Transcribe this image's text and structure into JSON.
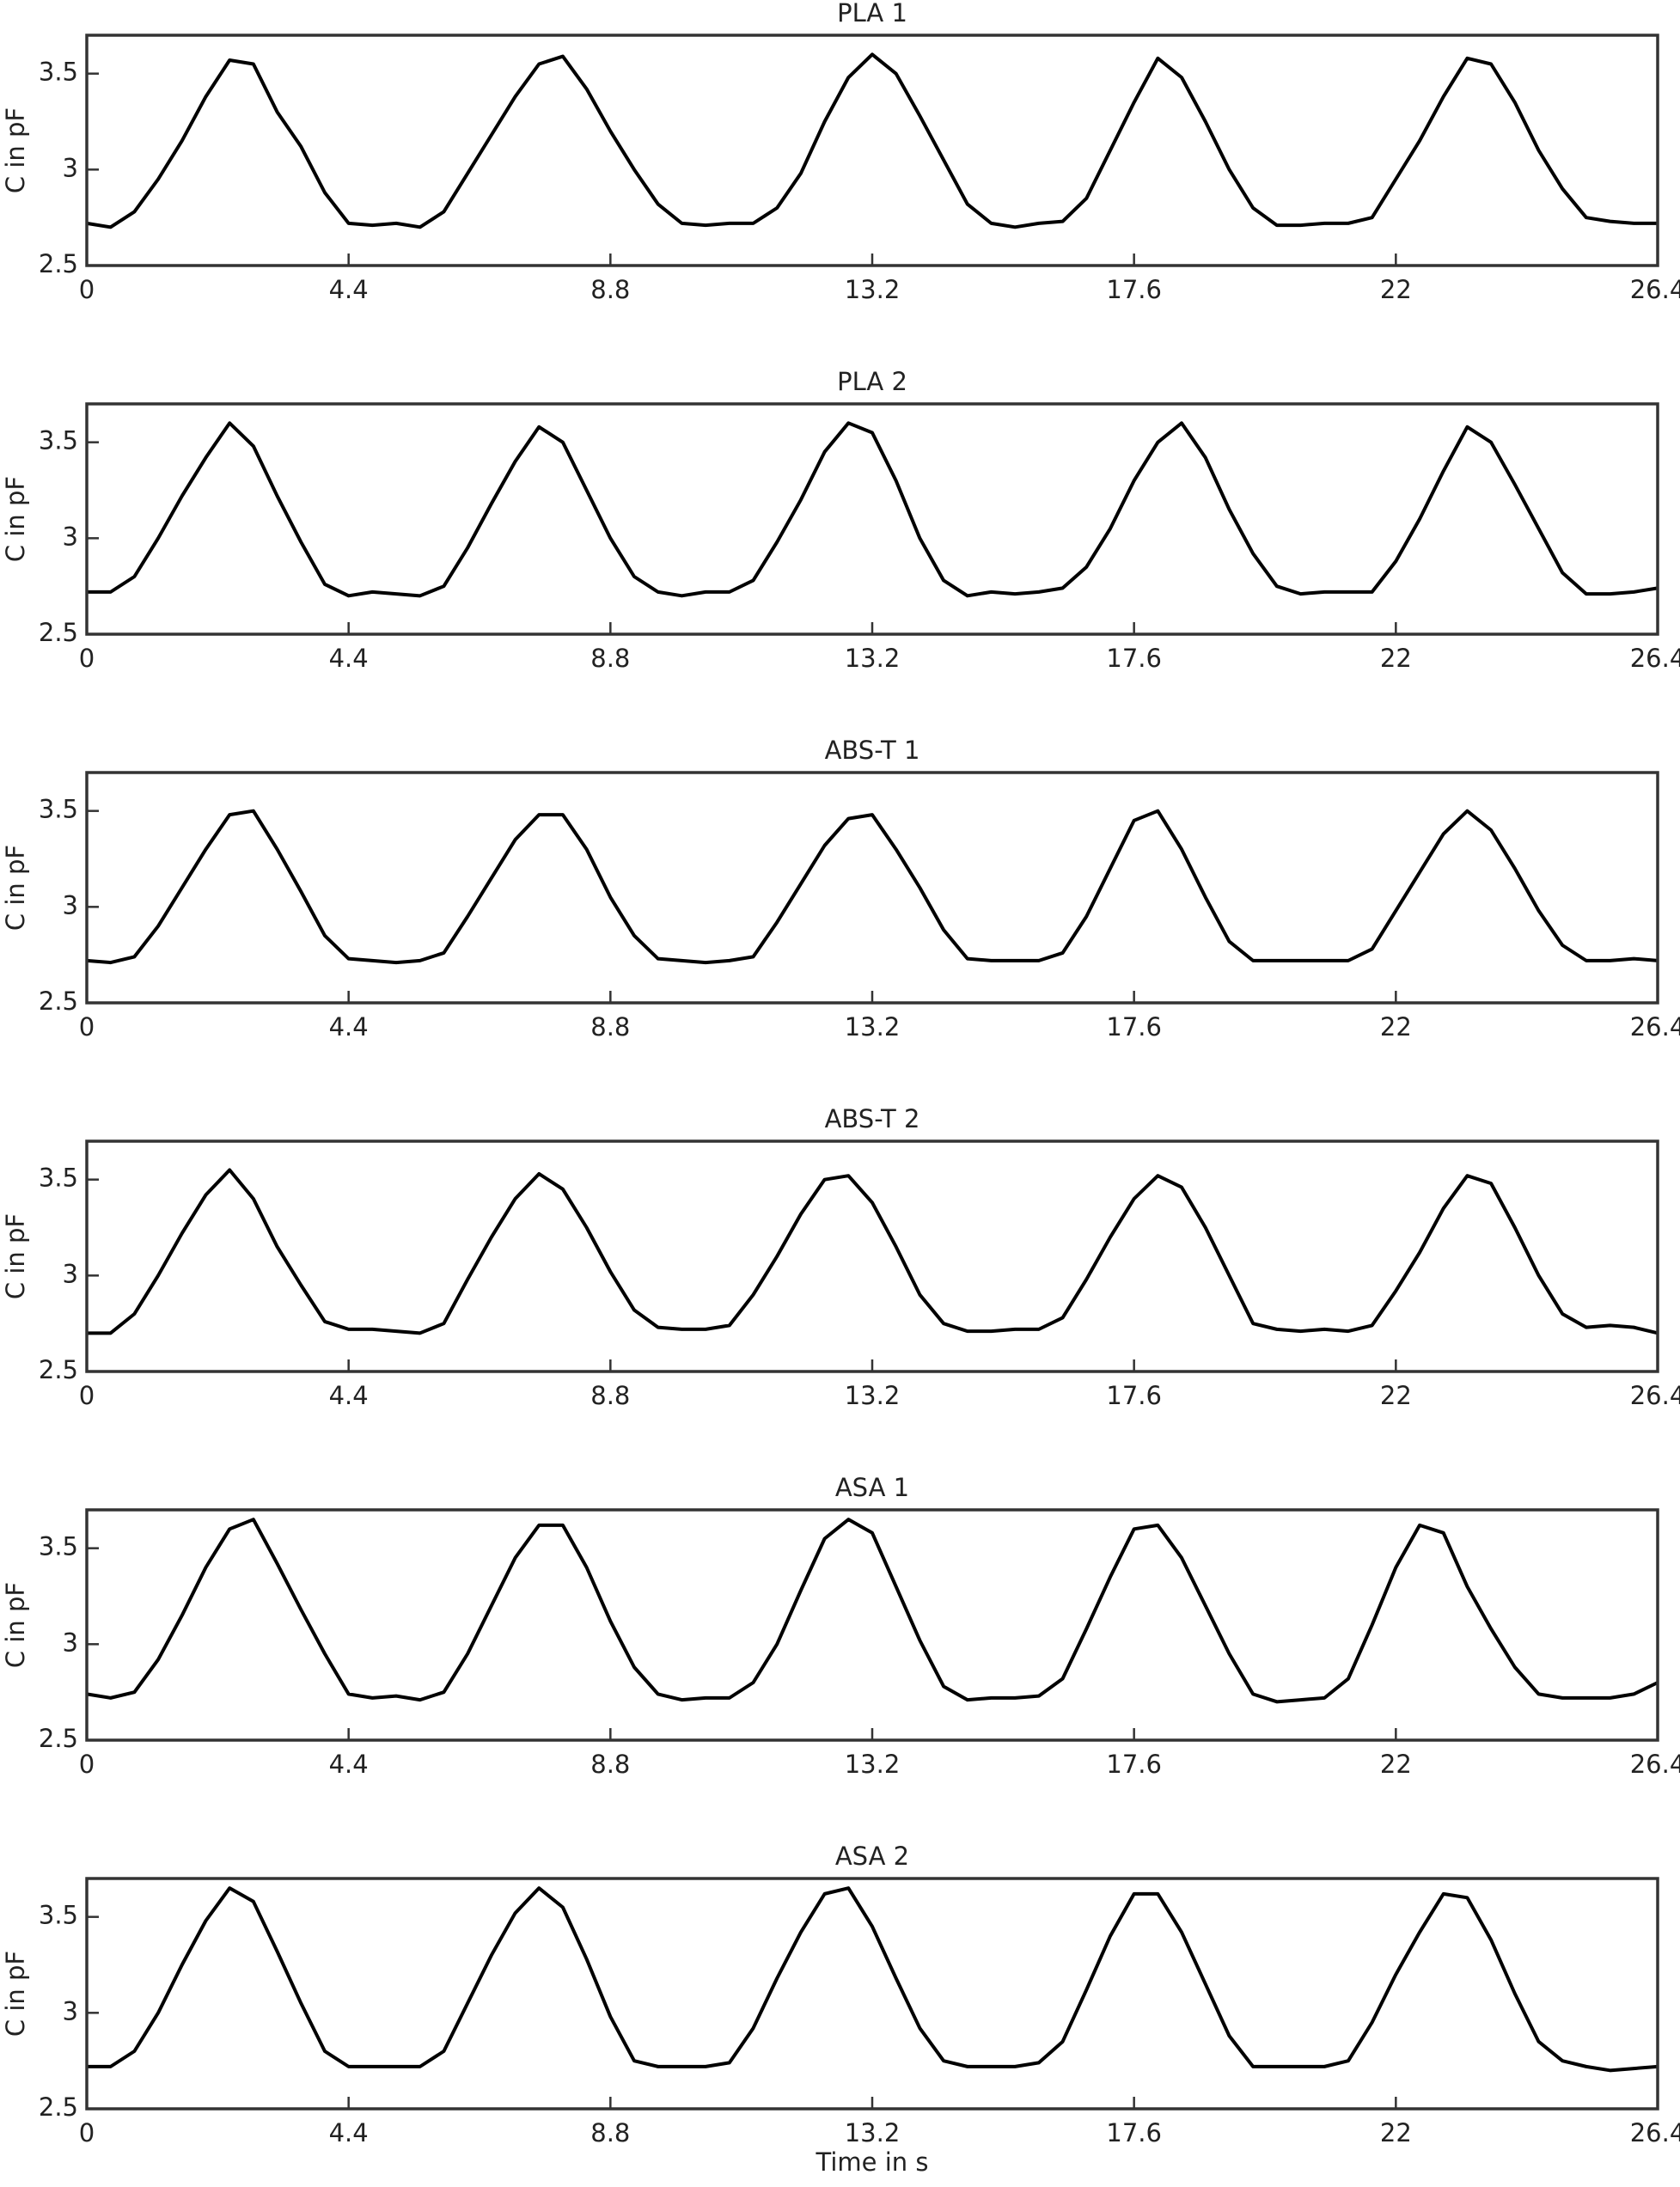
{
  "chart_data": [
    {
      "type": "line",
      "title": "PLA 1",
      "ylabel": "C in pF",
      "color": "#000000",
      "x": [
        0,
        0.4,
        0.8,
        1.2,
        1.6,
        2.0,
        2.4,
        2.8,
        3.2,
        3.6,
        4.0,
        4.4,
        4.8,
        5.2,
        5.6,
        6.0,
        6.4,
        6.8,
        7.2,
        7.6,
        8.0,
        8.4,
        8.8,
        9.2,
        9.6,
        10.0,
        10.4,
        10.8,
        11.2,
        11.6,
        12.0,
        12.4,
        12.8,
        13.2,
        13.6,
        14.0,
        14.4,
        14.8,
        15.2,
        15.6,
        16.0,
        16.4,
        16.8,
        17.2,
        17.6,
        18.0,
        18.4,
        18.8,
        19.2,
        19.6,
        20.0,
        20.4,
        20.8,
        21.2,
        21.6,
        22.0,
        22.4,
        22.8,
        23.2,
        23.6,
        24.0,
        24.4,
        24.8,
        25.2,
        25.6,
        26.0,
        26.4
      ],
      "values": [
        2.72,
        2.7,
        2.78,
        2.95,
        3.15,
        3.38,
        3.57,
        3.55,
        3.3,
        3.12,
        2.88,
        2.72,
        2.71,
        2.72,
        2.7,
        2.78,
        2.98,
        3.18,
        3.38,
        3.55,
        3.59,
        3.42,
        3.2,
        3.0,
        2.82,
        2.72,
        2.71,
        2.72,
        2.72,
        2.8,
        2.98,
        3.25,
        3.48,
        3.6,
        3.5,
        3.28,
        3.05,
        2.82,
        2.72,
        2.7,
        2.72,
        2.73,
        2.85,
        3.1,
        3.35,
        3.58,
        3.48,
        3.25,
        3.0,
        2.8,
        2.71,
        2.71,
        2.72,
        2.72,
        2.75,
        2.95,
        3.15,
        3.38,
        3.58,
        3.55,
        3.35,
        3.1,
        2.9,
        2.75,
        2.73,
        2.72,
        2.72
      ],
      "xlim": [
        0,
        26.4
      ],
      "ylim": [
        2.5,
        3.7
      ],
      "xticks": [
        0,
        4.4,
        8.8,
        13.2,
        17.6,
        22,
        26.4
      ],
      "yticks": [
        2.5,
        3,
        3.5
      ]
    },
    {
      "type": "line",
      "title": "PLA 2",
      "ylabel": "C in pF",
      "color": "#000000",
      "x": [
        0,
        0.4,
        0.8,
        1.2,
        1.6,
        2.0,
        2.4,
        2.8,
        3.2,
        3.6,
        4.0,
        4.4,
        4.8,
        5.2,
        5.6,
        6.0,
        6.4,
        6.8,
        7.2,
        7.6,
        8.0,
        8.4,
        8.8,
        9.2,
        9.6,
        10.0,
        10.4,
        10.8,
        11.2,
        11.6,
        12.0,
        12.4,
        12.8,
        13.2,
        13.6,
        14.0,
        14.4,
        14.8,
        15.2,
        15.6,
        16.0,
        16.4,
        16.8,
        17.2,
        17.6,
        18.0,
        18.4,
        18.8,
        19.2,
        19.6,
        20.0,
        20.4,
        20.8,
        21.2,
        21.6,
        22.0,
        22.4,
        22.8,
        23.2,
        23.6,
        24.0,
        24.4,
        24.8,
        25.2,
        25.6,
        26.0,
        26.4
      ],
      "values": [
        2.72,
        2.72,
        2.8,
        3.0,
        3.22,
        3.42,
        3.6,
        3.48,
        3.22,
        2.98,
        2.76,
        2.7,
        2.72,
        2.71,
        2.7,
        2.75,
        2.95,
        3.18,
        3.4,
        3.58,
        3.5,
        3.25,
        3.0,
        2.8,
        2.72,
        2.7,
        2.72,
        2.72,
        2.78,
        2.98,
        3.2,
        3.45,
        3.6,
        3.55,
        3.3,
        3.0,
        2.78,
        2.7,
        2.72,
        2.71,
        2.72,
        2.74,
        2.85,
        3.05,
        3.3,
        3.5,
        3.6,
        3.42,
        3.15,
        2.92,
        2.75,
        2.71,
        2.72,
        2.72,
        2.72,
        2.88,
        3.1,
        3.35,
        3.58,
        3.5,
        3.28,
        3.05,
        2.82,
        2.71,
        2.71,
        2.72,
        2.74
      ],
      "xlim": [
        0,
        26.4
      ],
      "ylim": [
        2.5,
        3.7
      ],
      "xticks": [
        0,
        4.4,
        8.8,
        13.2,
        17.6,
        22,
        26.4
      ],
      "yticks": [
        2.5,
        3,
        3.5
      ]
    },
    {
      "type": "line",
      "title": "ABS-T 1",
      "ylabel": "C in pF",
      "color": "#000000",
      "x": [
        0,
        0.4,
        0.8,
        1.2,
        1.6,
        2.0,
        2.4,
        2.8,
        3.2,
        3.6,
        4.0,
        4.4,
        4.8,
        5.2,
        5.6,
        6.0,
        6.4,
        6.8,
        7.2,
        7.6,
        8.0,
        8.4,
        8.8,
        9.2,
        9.6,
        10.0,
        10.4,
        10.8,
        11.2,
        11.6,
        12.0,
        12.4,
        12.8,
        13.2,
        13.6,
        14.0,
        14.4,
        14.8,
        15.2,
        15.6,
        16.0,
        16.4,
        16.8,
        17.2,
        17.6,
        18.0,
        18.4,
        18.8,
        19.2,
        19.6,
        20.0,
        20.4,
        20.8,
        21.2,
        21.6,
        22.0,
        22.4,
        22.8,
        23.2,
        23.6,
        24.0,
        24.4,
        24.8,
        25.2,
        25.6,
        26.0,
        26.4
      ],
      "values": [
        2.72,
        2.71,
        2.74,
        2.9,
        3.1,
        3.3,
        3.48,
        3.5,
        3.3,
        3.08,
        2.85,
        2.73,
        2.72,
        2.71,
        2.72,
        2.76,
        2.95,
        3.15,
        3.35,
        3.48,
        3.48,
        3.3,
        3.05,
        2.85,
        2.73,
        2.72,
        2.71,
        2.72,
        2.74,
        2.92,
        3.12,
        3.32,
        3.46,
        3.48,
        3.3,
        3.1,
        2.88,
        2.73,
        2.72,
        2.72,
        2.72,
        2.76,
        2.95,
        3.2,
        3.45,
        3.5,
        3.3,
        3.05,
        2.82,
        2.72,
        2.72,
        2.72,
        2.72,
        2.72,
        2.78,
        2.98,
        3.18,
        3.38,
        3.5,
        3.4,
        3.2,
        2.98,
        2.8,
        2.72,
        2.72,
        2.73,
        2.72
      ],
      "xlim": [
        0,
        26.4
      ],
      "ylim": [
        2.5,
        3.7
      ],
      "xticks": [
        0,
        4.4,
        8.8,
        13.2,
        17.6,
        22,
        26.4
      ],
      "yticks": [
        2.5,
        3,
        3.5
      ]
    },
    {
      "type": "line",
      "title": "ABS-T 2",
      "ylabel": "C in pF",
      "color": "#000000",
      "x": [
        0,
        0.4,
        0.8,
        1.2,
        1.6,
        2.0,
        2.4,
        2.8,
        3.2,
        3.6,
        4.0,
        4.4,
        4.8,
        5.2,
        5.6,
        6.0,
        6.4,
        6.8,
        7.2,
        7.6,
        8.0,
        8.4,
        8.8,
        9.2,
        9.6,
        10.0,
        10.4,
        10.8,
        11.2,
        11.6,
        12.0,
        12.4,
        12.8,
        13.2,
        13.6,
        14.0,
        14.4,
        14.8,
        15.2,
        15.6,
        16.0,
        16.4,
        16.8,
        17.2,
        17.6,
        18.0,
        18.4,
        18.8,
        19.2,
        19.6,
        20.0,
        20.4,
        20.8,
        21.2,
        21.6,
        22.0,
        22.4,
        22.8,
        23.2,
        23.6,
        24.0,
        24.4,
        24.8,
        25.2,
        25.6,
        26.0,
        26.4
      ],
      "values": [
        2.7,
        2.7,
        2.8,
        3.0,
        3.22,
        3.42,
        3.55,
        3.4,
        3.15,
        2.95,
        2.76,
        2.72,
        2.72,
        2.71,
        2.7,
        2.75,
        2.98,
        3.2,
        3.4,
        3.53,
        3.45,
        3.25,
        3.02,
        2.82,
        2.73,
        2.72,
        2.72,
        2.74,
        2.9,
        3.1,
        3.32,
        3.5,
        3.52,
        3.38,
        3.15,
        2.9,
        2.75,
        2.71,
        2.71,
        2.72,
        2.72,
        2.78,
        2.98,
        3.2,
        3.4,
        3.52,
        3.46,
        3.25,
        3.0,
        2.75,
        2.72,
        2.71,
        2.72,
        2.71,
        2.74,
        2.92,
        3.12,
        3.35,
        3.52,
        3.48,
        3.25,
        3.0,
        2.8,
        2.73,
        2.74,
        2.73,
        2.7
      ],
      "xlim": [
        0,
        26.4
      ],
      "ylim": [
        2.5,
        3.7
      ],
      "xticks": [
        0,
        4.4,
        8.8,
        13.2,
        17.6,
        22,
        26.4
      ],
      "yticks": [
        2.5,
        3,
        3.5
      ]
    },
    {
      "type": "line",
      "title": "ASA 1",
      "ylabel": "C in pF",
      "color": "#000000",
      "x": [
        0,
        0.4,
        0.8,
        1.2,
        1.6,
        2.0,
        2.4,
        2.8,
        3.2,
        3.6,
        4.0,
        4.4,
        4.8,
        5.2,
        5.6,
        6.0,
        6.4,
        6.8,
        7.2,
        7.6,
        8.0,
        8.4,
        8.8,
        9.2,
        9.6,
        10.0,
        10.4,
        10.8,
        11.2,
        11.6,
        12.0,
        12.4,
        12.8,
        13.2,
        13.6,
        14.0,
        14.4,
        14.8,
        15.2,
        15.6,
        16.0,
        16.4,
        16.8,
        17.2,
        17.6,
        18.0,
        18.4,
        18.8,
        19.2,
        19.6,
        20.0,
        20.4,
        20.8,
        21.2,
        21.6,
        22.0,
        22.4,
        22.8,
        23.2,
        23.6,
        24.0,
        24.4,
        24.8,
        25.2,
        25.6,
        26.0,
        26.4
      ],
      "values": [
        2.74,
        2.72,
        2.75,
        2.92,
        3.15,
        3.4,
        3.6,
        3.65,
        3.42,
        3.18,
        2.95,
        2.74,
        2.72,
        2.73,
        2.71,
        2.75,
        2.95,
        3.2,
        3.45,
        3.62,
        3.62,
        3.4,
        3.12,
        2.88,
        2.74,
        2.71,
        2.72,
        2.72,
        2.8,
        3.0,
        3.28,
        3.55,
        3.65,
        3.58,
        3.3,
        3.02,
        2.78,
        2.71,
        2.72,
        2.72,
        2.73,
        2.82,
        3.08,
        3.35,
        3.6,
        3.62,
        3.45,
        3.2,
        2.95,
        2.74,
        2.7,
        2.71,
        2.72,
        2.82,
        3.1,
        3.4,
        3.62,
        3.58,
        3.3,
        3.08,
        2.88,
        2.74,
        2.72,
        2.72,
        2.72,
        2.74,
        2.8
      ],
      "xlim": [
        0,
        26.4
      ],
      "ylim": [
        2.5,
        3.7
      ],
      "xticks": [
        0,
        4.4,
        8.8,
        13.2,
        17.6,
        22,
        26.4
      ],
      "yticks": [
        2.5,
        3,
        3.5
      ]
    },
    {
      "type": "line",
      "title": "ASA 2",
      "ylabel": "C in pF",
      "xlabel": "Time in s",
      "color": "#000000",
      "x": [
        0,
        0.4,
        0.8,
        1.2,
        1.6,
        2.0,
        2.4,
        2.8,
        3.2,
        3.6,
        4.0,
        4.4,
        4.8,
        5.2,
        5.6,
        6.0,
        6.4,
        6.8,
        7.2,
        7.6,
        8.0,
        8.4,
        8.8,
        9.2,
        9.6,
        10.0,
        10.4,
        10.8,
        11.2,
        11.6,
        12.0,
        12.4,
        12.8,
        13.2,
        13.6,
        14.0,
        14.4,
        14.8,
        15.2,
        15.6,
        16.0,
        16.4,
        16.8,
        17.2,
        17.6,
        18.0,
        18.4,
        18.8,
        19.2,
        19.6,
        20.0,
        20.4,
        20.8,
        21.2,
        21.6,
        22.0,
        22.4,
        22.8,
        23.2,
        23.6,
        24.0,
        24.4,
        24.8,
        25.2,
        25.6,
        26.0,
        26.4
      ],
      "values": [
        2.72,
        2.72,
        2.8,
        3.0,
        3.25,
        3.48,
        3.65,
        3.58,
        3.32,
        3.05,
        2.8,
        2.72,
        2.72,
        2.72,
        2.72,
        2.8,
        3.05,
        3.3,
        3.52,
        3.65,
        3.55,
        3.28,
        2.98,
        2.75,
        2.72,
        2.72,
        2.72,
        2.74,
        2.92,
        3.18,
        3.42,
        3.62,
        3.65,
        3.45,
        3.18,
        2.92,
        2.75,
        2.72,
        2.72,
        2.72,
        2.74,
        2.85,
        3.12,
        3.4,
        3.62,
        3.62,
        3.42,
        3.15,
        2.88,
        2.72,
        2.72,
        2.72,
        2.72,
        2.75,
        2.95,
        3.2,
        3.42,
        3.62,
        3.6,
        3.38,
        3.1,
        2.85,
        2.75,
        2.72,
        2.7,
        2.71,
        2.72
      ],
      "xlim": [
        0,
        26.4
      ],
      "ylim": [
        2.5,
        3.7
      ],
      "xticks": [
        0,
        4.4,
        8.8,
        13.2,
        17.6,
        22,
        26.4
      ],
      "yticks": [
        2.5,
        3,
        3.5
      ]
    }
  ]
}
